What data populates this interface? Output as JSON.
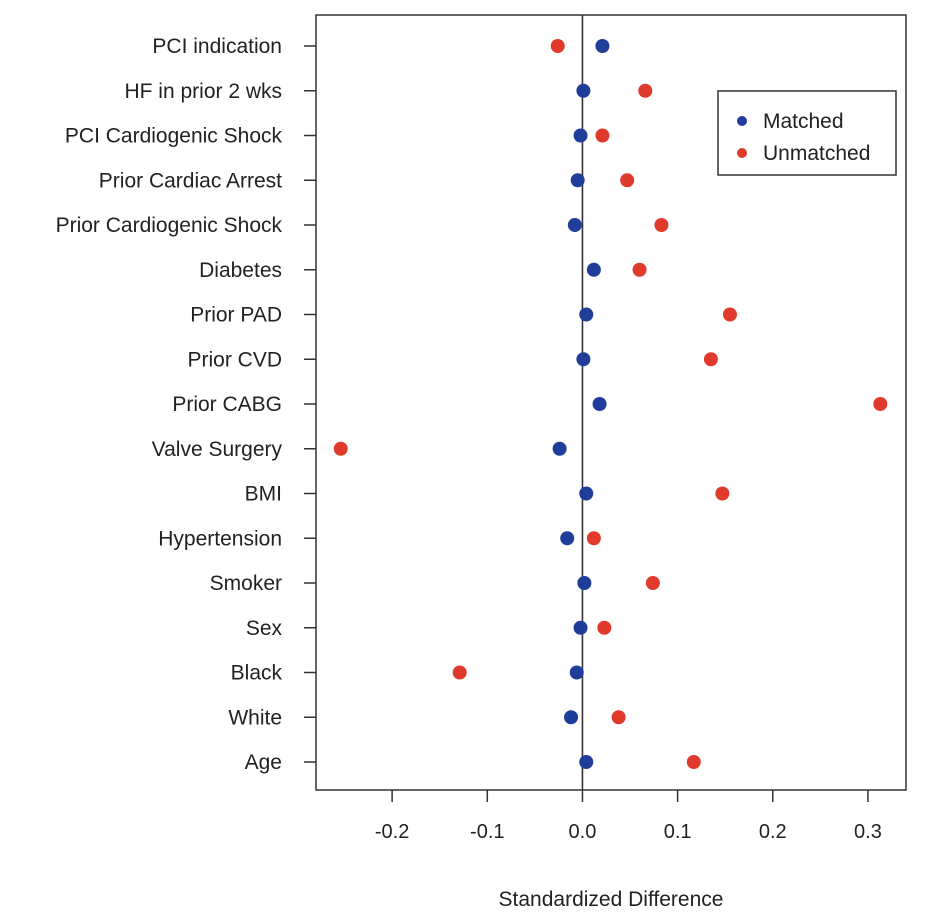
{
  "chart_data": {
    "type": "scatter",
    "title": "",
    "xlabel": "Standardized Difference",
    "ylabel": "",
    "xlim": [
      -0.28,
      0.34
    ],
    "xticks": [
      -0.2,
      -0.1,
      0.0,
      0.1,
      0.2,
      0.3
    ],
    "xtick_labels": [
      "-0.2",
      "-0.1",
      "0.0",
      "0.1",
      "0.2",
      "0.3"
    ],
    "reference_line": 0.0,
    "grid": false,
    "legend_position": "top-right",
    "categories": [
      "PCI indication",
      "HF in prior 2 wks",
      "PCI Cardiogenic Shock",
      "Prior Cardiac Arrest",
      "Prior Cardiogenic Shock",
      "Diabetes",
      "Prior PAD",
      "Prior CVD",
      "Prior CABG",
      "Valve Surgery",
      "BMI",
      "Hypertension",
      "Smoker",
      "Sex",
      "Black",
      "White",
      "Age"
    ],
    "series": [
      {
        "name": "Matched",
        "color": "#1f3d99",
        "values": [
          0.021,
          0.001,
          -0.002,
          -0.005,
          -0.008,
          0.012,
          0.004,
          0.001,
          0.018,
          -0.024,
          0.004,
          -0.016,
          0.002,
          -0.002,
          -0.006,
          -0.012,
          0.004
        ]
      },
      {
        "name": "Unmatched",
        "color": "#e03a2c",
        "values": [
          -0.026,
          0.066,
          0.021,
          0.047,
          0.083,
          0.06,
          0.155,
          0.135,
          0.313,
          -0.254,
          0.147,
          0.012,
          0.074,
          0.023,
          -0.129,
          0.038,
          0.117
        ]
      }
    ]
  }
}
